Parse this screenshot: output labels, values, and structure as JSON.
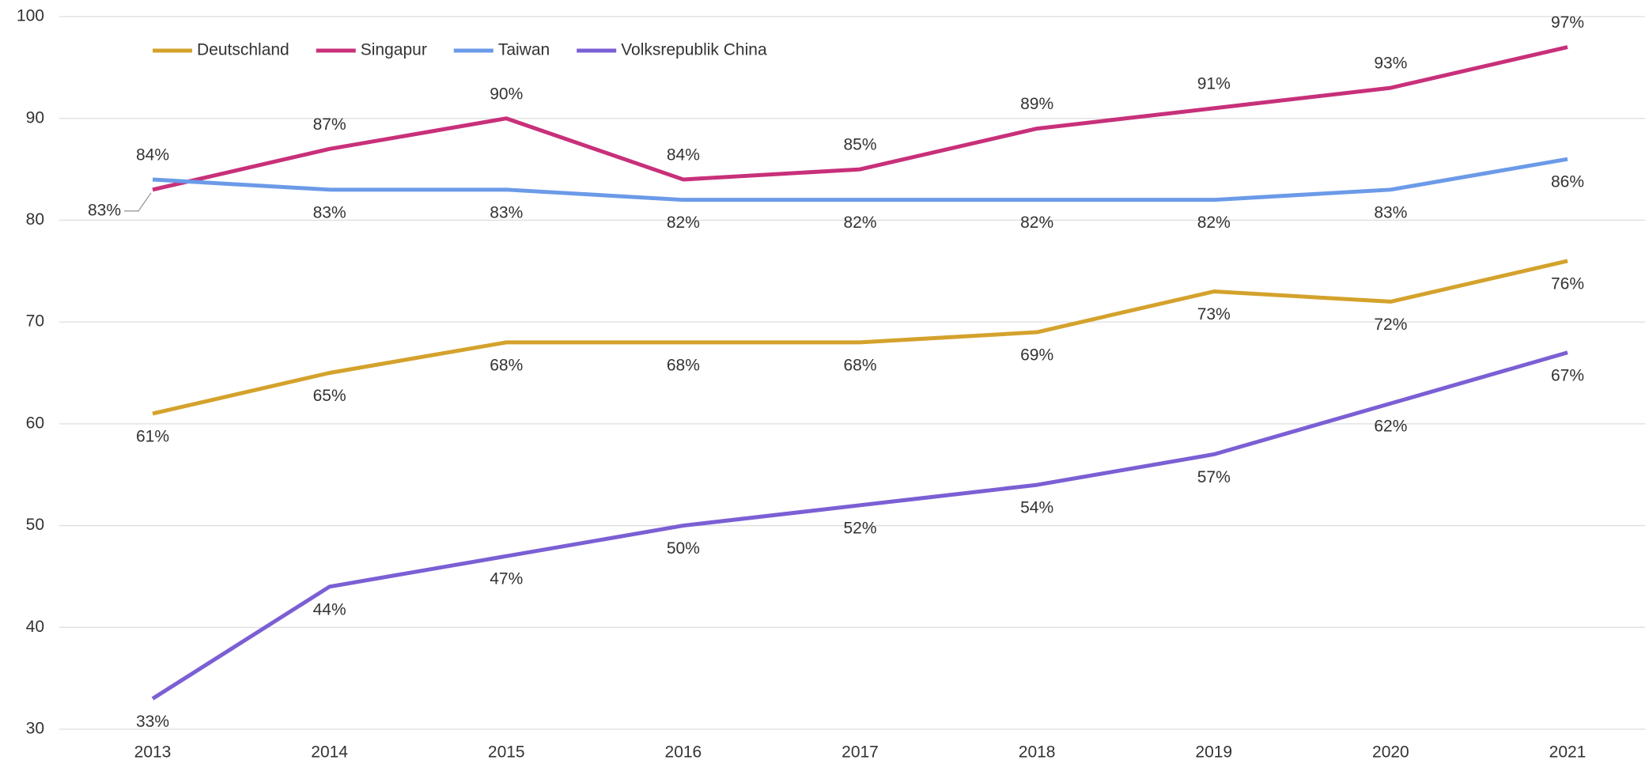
{
  "chart_data": {
    "type": "line",
    "categories": [
      "2013",
      "2014",
      "2015",
      "2016",
      "2017",
      "2018",
      "2019",
      "2020",
      "2021"
    ],
    "ylim": [
      30,
      100
    ],
    "yticks": [
      30,
      40,
      50,
      60,
      70,
      80,
      90,
      100
    ],
    "grid": true,
    "legend": "top-left",
    "series": [
      {
        "name": "Deutschland",
        "color": "#d4a22c",
        "values": [
          61,
          65,
          68,
          68,
          68,
          69,
          73,
          72,
          76
        ],
        "value_labels": [
          "61%",
          "65%",
          "68%",
          "68%",
          "68%",
          "69%",
          "73%",
          "72%",
          "76%"
        ]
      },
      {
        "name": "Singapur",
        "color": "#c8307a",
        "values": [
          83,
          87,
          90,
          84,
          85,
          89,
          91,
          93,
          97
        ],
        "value_labels": [
          "83%",
          "87%",
          "90%",
          "84%",
          "85%",
          "89%",
          "91%",
          "93%",
          "97%"
        ]
      },
      {
        "name": "Taiwan",
        "color": "#6b9ae8",
        "values": [
          84,
          83,
          83,
          82,
          82,
          82,
          82,
          83,
          86
        ],
        "value_labels": [
          "84%",
          "83%",
          "83%",
          "82%",
          "82%",
          "82%",
          "82%",
          "83%",
          "86%"
        ]
      },
      {
        "name": "Volksrepublik China",
        "color": "#7b5fd4",
        "values": [
          33,
          44,
          47,
          50,
          52,
          54,
          57,
          62,
          67
        ],
        "value_labels": [
          "33%",
          "44%",
          "47%",
          "50%",
          "52%",
          "54%",
          "57%",
          "62%",
          "67%"
        ]
      }
    ]
  }
}
